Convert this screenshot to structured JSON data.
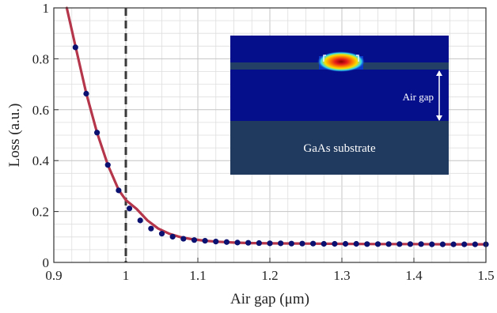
{
  "chart_data": {
    "type": "line",
    "xlabel": "Air gap (μm)",
    "ylabel": "Loss  (a.u.)",
    "xlim": [
      0.9,
      1.5
    ],
    "ylim": [
      0,
      1
    ],
    "xticks": [
      0.9,
      1.0,
      1.1,
      1.2,
      1.3,
      1.4,
      1.5
    ],
    "xtick_labels": [
      "0.9",
      "1",
      "1.1",
      "1.2",
      "1.3",
      "1.4",
      "1.5"
    ],
    "yticks": [
      0,
      0.2,
      0.4,
      0.6,
      0.8,
      1.0
    ],
    "ytick_labels": [
      "0",
      "0.2",
      "0.4",
      "0.6",
      "0.8",
      "1"
    ],
    "grid": true,
    "vertical_reference_line": {
      "x": 1.0,
      "style": "dashed"
    },
    "series": [
      {
        "kind": "curve",
        "color": "#b5364a",
        "x": [
          0.918,
          0.93,
          0.945,
          0.96,
          0.975,
          0.99,
          1.0,
          1.015,
          1.03,
          1.045,
          1.06,
          1.075,
          1.09,
          1.11,
          1.13,
          1.15,
          1.17,
          1.2,
          1.25,
          1.3,
          1.35,
          1.4,
          1.45,
          1.5
        ],
        "y": [
          1.0,
          0.85,
          0.665,
          0.51,
          0.383,
          0.285,
          0.245,
          0.21,
          0.165,
          0.133,
          0.113,
          0.1,
          0.092,
          0.085,
          0.081,
          0.078,
          0.076,
          0.075,
          0.074,
          0.073,
          0.072,
          0.072,
          0.071,
          0.071
        ]
      },
      {
        "kind": "markers",
        "color": "#0a1170",
        "x": [
          0.93,
          0.945,
          0.96,
          0.975,
          0.99,
          1.005,
          1.02,
          1.035,
          1.05,
          1.065,
          1.08,
          1.095,
          1.11,
          1.125,
          1.14,
          1.155,
          1.17,
          1.185,
          1.2,
          1.215,
          1.23,
          1.245,
          1.26,
          1.275,
          1.29,
          1.305,
          1.32,
          1.335,
          1.35,
          1.365,
          1.38,
          1.395,
          1.41,
          1.425,
          1.44,
          1.455,
          1.47,
          1.485,
          1.5
        ],
        "y": [
          0.845,
          0.663,
          0.51,
          0.383,
          0.283,
          0.212,
          0.165,
          0.133,
          0.113,
          0.101,
          0.093,
          0.088,
          0.085,
          0.082,
          0.08,
          0.078,
          0.077,
          0.076,
          0.075,
          0.075,
          0.074,
          0.074,
          0.074,
          0.073,
          0.073,
          0.073,
          0.073,
          0.072,
          0.072,
          0.072,
          0.072,
          0.072,
          0.072,
          0.071,
          0.071,
          0.071,
          0.071,
          0.071,
          0.071
        ]
      }
    ]
  },
  "inset": {
    "substrate_label": "GaAs substrate",
    "gap_label": "Air gap",
    "colors": {
      "background": "#050f8c",
      "substrate": "#20395f",
      "membrane": "#243f66",
      "mode_core": "#d81818",
      "mode_mid": "#f5d400",
      "mode_outer": "#00c8e8"
    }
  }
}
